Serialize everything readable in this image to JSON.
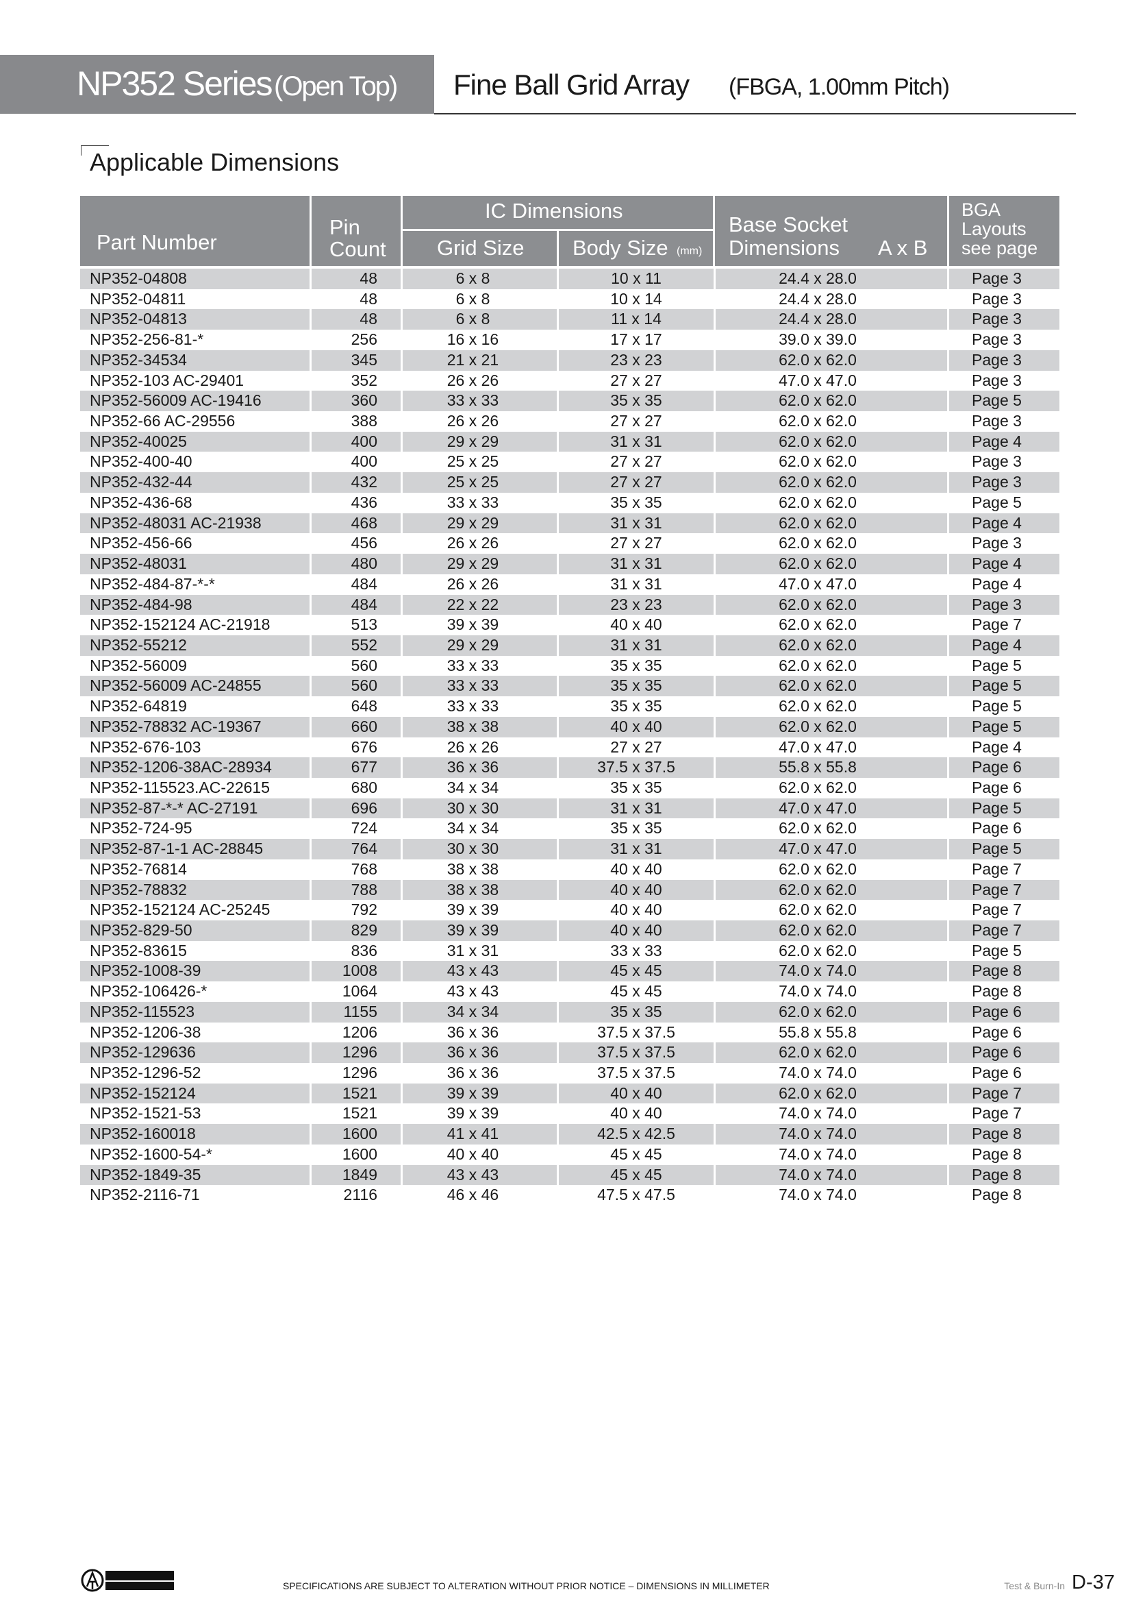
{
  "header": {
    "series": "NP352 Series",
    "series_note": "(Open Top)",
    "type": "Fine Ball Grid Array",
    "type_note": "(FBGA, 1.00mm Pitch)"
  },
  "section_title": "Applicable Dimensions",
  "table": {
    "headers": {
      "part_number": "Part Number",
      "pin_count_1": "Pin",
      "pin_count_2": "Count",
      "ic_dimensions": "IC Dimensions",
      "grid_size": "Grid Size",
      "body_size": "Body Size",
      "body_size_unit": "(mm)",
      "base_socket_1": "Base Socket",
      "base_socket_2": "Dimensions",
      "base_socket_axb": "A x B",
      "bga_1": "BGA",
      "bga_2": "Layouts",
      "bga_3": "see page"
    },
    "rows": [
      [
        "NP352-04808",
        "48",
        "6 x 8",
        "10 x 11",
        "24.4 x 28.0",
        "Page 3"
      ],
      [
        "NP352-04811",
        "48",
        "6 x 8",
        "10 x 14",
        "24.4 x 28.0",
        "Page 3"
      ],
      [
        "NP352-04813",
        "48",
        "6 x 8",
        "11 x 14",
        "24.4 x 28.0",
        "Page 3"
      ],
      [
        "NP352-256-81-*",
        "256",
        "16 x 16",
        "17 x 17",
        "39.0 x 39.0",
        "Page 3"
      ],
      [
        "NP352-34534",
        "345",
        "21 x 21",
        "23 x 23",
        "62.0 x 62.0",
        "Page 3"
      ],
      [
        "NP352-103 AC-29401",
        "352",
        "26 x 26",
        "27 x 27",
        "47.0 x 47.0",
        "Page 3"
      ],
      [
        "NP352-56009 AC-19416",
        "360",
        "33 x 33",
        "35 x 35",
        "62.0 x 62.0",
        "Page 5"
      ],
      [
        "NP352-66 AC-29556",
        "388",
        "26 x 26",
        "27 x 27",
        "62.0 x 62.0",
        "Page 3"
      ],
      [
        "NP352-40025",
        "400",
        "29 x 29",
        "31 x 31",
        "62.0 x 62.0",
        "Page 4"
      ],
      [
        "NP352-400-40",
        "400",
        "25 x 25",
        "27 x 27",
        "62.0 x 62.0",
        "Page 3"
      ],
      [
        "NP352-432-44",
        "432",
        "25 x 25",
        "27 x 27",
        "62.0 x 62.0",
        "Page 3"
      ],
      [
        "NP352-436-68",
        "436",
        "33 x 33",
        "35 x 35",
        "62.0 x 62.0",
        "Page 5"
      ],
      [
        "NP352-48031 AC-21938",
        "468",
        "29 x 29",
        "31 x 31",
        "62.0 x 62.0",
        "Page 4"
      ],
      [
        "NP352-456-66",
        "456",
        "26 x 26",
        "27 x 27",
        "62.0 x 62.0",
        "Page 3"
      ],
      [
        "NP352-48031",
        "480",
        "29 x 29",
        "31 x 31",
        "62.0 x 62.0",
        "Page 4"
      ],
      [
        "NP352-484-87-*-*",
        "484",
        "26 x 26",
        "31 x 31",
        "47.0 x 47.0",
        "Page 4"
      ],
      [
        "NP352-484-98",
        "484",
        "22 x 22",
        "23 x 23",
        "62.0 x 62.0",
        "Page 3"
      ],
      [
        "NP352-152124 AC-21918",
        "513",
        "39 x 39",
        "40 x 40",
        "62.0 x 62.0",
        "Page 7"
      ],
      [
        "NP352-55212",
        "552",
        "29 x 29",
        "31 x 31",
        "62.0 x 62.0",
        "Page 4"
      ],
      [
        "NP352-56009",
        "560",
        "33 x 33",
        "35 x 35",
        "62.0 x 62.0",
        "Page 5"
      ],
      [
        "NP352-56009 AC-24855",
        "560",
        "33 x 33",
        "35 x 35",
        "62.0 x 62.0",
        "Page 5"
      ],
      [
        "NP352-64819",
        "648",
        "33 x 33",
        "35 x 35",
        "62.0 x 62.0",
        "Page 5"
      ],
      [
        "NP352-78832 AC-19367",
        "660",
        "38 x 38",
        "40 x 40",
        "62.0 x 62.0",
        "Page 5"
      ],
      [
        "NP352-676-103",
        "676",
        "26 x 26",
        "27 x 27",
        "47.0 x 47.0",
        "Page 4"
      ],
      [
        "NP352-1206-38AC-28934",
        "677",
        "36 x 36",
        "37.5 x 37.5",
        "55.8 x 55.8",
        "Page 6"
      ],
      [
        "NP352-115523.AC-22615",
        "680",
        "34 x 34",
        "35 x 35",
        "62.0 x 62.0",
        "Page 6"
      ],
      [
        "NP352-87-*-* AC-27191",
        "696",
        "30 x 30",
        "31 x 31",
        "47.0 x 47.0",
        "Page 5"
      ],
      [
        "NP352-724-95",
        "724",
        "34 x 34",
        "35 x 35",
        "62.0 x 62.0",
        "Page 6"
      ],
      [
        "NP352-87-1-1 AC-28845",
        "764",
        "30 x 30",
        "31 x 31",
        "47.0 x 47.0",
        "Page 5"
      ],
      [
        "NP352-76814",
        "768",
        "38 x 38",
        "40 x 40",
        "62.0 x 62.0",
        "Page 7"
      ],
      [
        "NP352-78832",
        "788",
        "38 x 38",
        "40 x 40",
        "62.0 x 62.0",
        "Page 7"
      ],
      [
        "NP352-152124 AC-25245",
        "792",
        "39 x 39",
        "40 x 40",
        "62.0 x 62.0",
        "Page 7"
      ],
      [
        "NP352-829-50",
        "829",
        "39 x 39",
        "40 x 40",
        "62.0 x 62.0",
        "Page 7"
      ],
      [
        "NP352-83615",
        "836",
        "31 x 31",
        "33 x 33",
        "62.0 x 62.0",
        "Page 5"
      ],
      [
        "NP352-1008-39",
        "1008",
        "43 x 43",
        "45 x 45",
        "74.0 x 74.0",
        "Page 8"
      ],
      [
        "NP352-106426-*",
        "1064",
        "43 x 43",
        "45 x 45",
        "74.0 x 74.0",
        "Page 8"
      ],
      [
        "NP352-115523",
        "1155",
        "34 x 34",
        "35 x 35",
        "62.0 x 62.0",
        "Page 6"
      ],
      [
        "NP352-1206-38",
        "1206",
        "36 x 36",
        "37.5 x 37.5",
        "55.8 x 55.8",
        "Page 6"
      ],
      [
        "NP352-129636",
        "1296",
        "36 x 36",
        "37.5 x 37.5",
        "62.0 x 62.0",
        "Page 6"
      ],
      [
        "NP352-1296-52",
        "1296",
        "36 x 36",
        "37.5 x 37.5",
        "74.0 x 74.0",
        "Page 6"
      ],
      [
        "NP352-152124",
        "1521",
        "39 x 39",
        "40 x 40",
        "62.0 x 62.0",
        "Page 7"
      ],
      [
        "NP352-1521-53",
        "1521",
        "39 x 39",
        "40 x 40",
        "74.0 x 74.0",
        "Page 7"
      ],
      [
        "NP352-160018",
        "1600",
        "41 x 41",
        "42.5 x 42.5",
        "74.0 x 74.0",
        "Page 8"
      ],
      [
        "NP352-1600-54-*",
        "1600",
        "40 x 40",
        "45 x 45",
        "74.0 x 74.0",
        "Page 8"
      ],
      [
        "NP352-1849-35",
        "1849",
        "43 x 43",
        "45 x 45",
        "74.0 x 74.0",
        "Page 8"
      ],
      [
        "NP352-2116-71",
        "2116",
        "46 x 46",
        "47.5 x 47.5",
        "74.0 x 74.0",
        "Page 8"
      ]
    ]
  },
  "footer": {
    "logo_text": "YAMAICHI ELECTRONICS",
    "notice": "SPECIFICATIONS ARE SUBJECT TO ALTERATION WITHOUT PRIOR NOTICE  –  DIMENSIONS IN MILLIMETER",
    "section": "Test & Burn-In",
    "page": "D-37"
  },
  "colors": {
    "header_gray": "#88898c",
    "table_header": "#8c8e91",
    "row_shade": "#d1d2d4"
  }
}
